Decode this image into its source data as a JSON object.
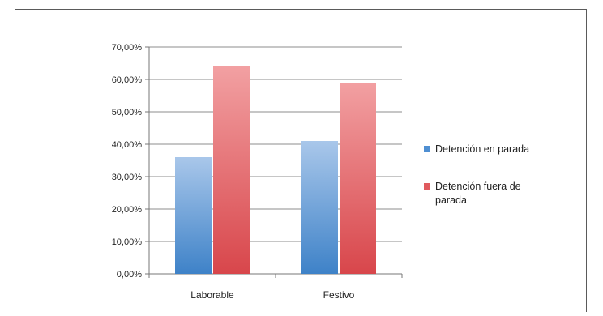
{
  "chart_data": {
    "type": "bar",
    "title": "",
    "xlabel": "",
    "ylabel": "",
    "categories": [
      "Laborable",
      "Festivo"
    ],
    "series": [
      {
        "name": "Detención en parada",
        "values": [
          36.0,
          41.0
        ],
        "color": "#5b9bd5"
      },
      {
        "name": "Detención fuera de parada",
        "values": [
          64.0,
          59.0
        ],
        "color": "#e05a5e"
      }
    ],
    "ylim": [
      0,
      70
    ],
    "yticks": [
      0,
      10,
      20,
      30,
      40,
      50,
      60,
      70
    ],
    "ytick_labels": [
      "0,00%",
      "10,00%",
      "20,00%",
      "30,00%",
      "40,00%",
      "50,00%",
      "60,00%",
      "70,00%"
    ],
    "grid": true,
    "legend_position": "right"
  }
}
